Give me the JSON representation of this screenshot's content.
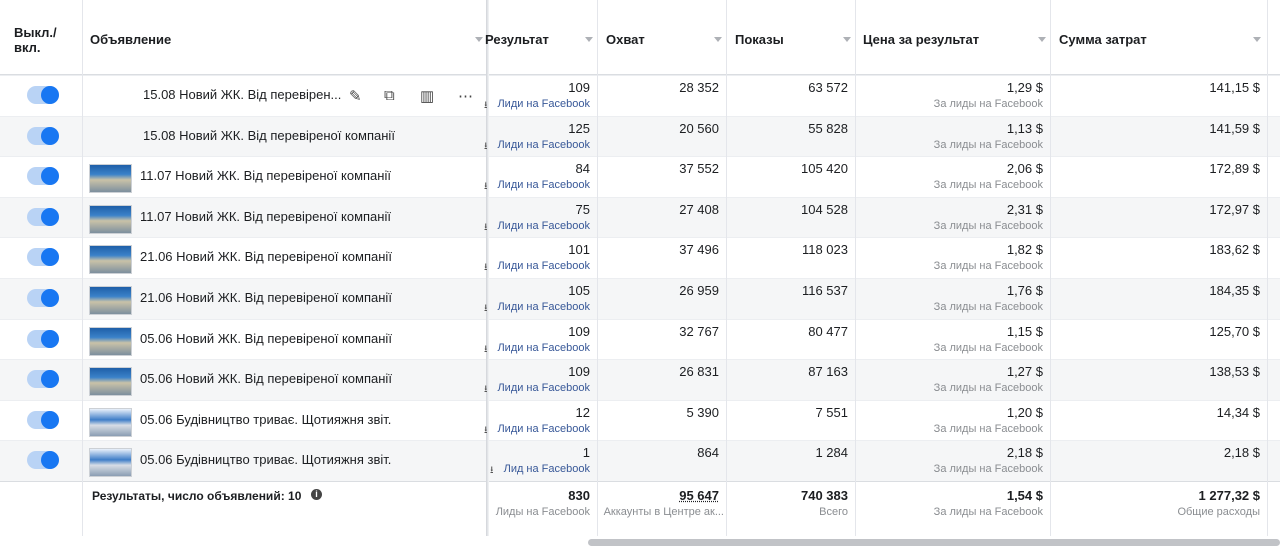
{
  "header": {
    "toggle": [
      "Выкл./",
      "вкл."
    ],
    "columns": [
      "Объявление",
      "Результат",
      "Охват",
      "Показы",
      "Цена за результат",
      "Сумма затрат"
    ]
  },
  "table": {
    "rows": [
      {
        "name": "15.08 Новий ЖК. Від перевірен...",
        "result": "109",
        "result_label": "Лиди на Facebook",
        "reach": "28 352",
        "impressions": "63 572",
        "cost": "1,29 $",
        "cost_label": "За лиды на Facebook",
        "spend": "141,15 $"
      },
      {
        "name": "15.08 Новий ЖК. Від перевіреної компанії",
        "result": "125",
        "result_label": "Лиди на Facebook",
        "reach": "20 560",
        "impressions": "55 828",
        "cost": "1,13 $",
        "cost_label": "За лиды на Facebook",
        "spend": "141,59 $"
      },
      {
        "name": "11.07 Новий ЖК. Від перевіреної компанії",
        "result": "84",
        "result_label": "Лиди на Facebook",
        "reach": "37 552",
        "impressions": "105 420",
        "cost": "2,06 $",
        "cost_label": "За лиды на Facebook",
        "spend": "172,89 $"
      },
      {
        "name": "11.07 Новий ЖК. Від перевіреної компанії",
        "result": "75",
        "result_label": "Лиди на Facebook",
        "reach": "27 408",
        "impressions": "104 528",
        "cost": "2,31 $",
        "cost_label": "За лиды на Facebook",
        "spend": "172,97 $"
      },
      {
        "name": "21.06 Новий ЖК. Від перевіреної компанії",
        "result": "101",
        "result_label": "Лиди на Facebook",
        "reach": "37 496",
        "impressions": "118 023",
        "cost": "1,82 $",
        "cost_label": "За лиды на Facebook",
        "spend": "183,62 $"
      },
      {
        "name": "21.06 Новий ЖК. Від перевіреної компанії",
        "result": "105",
        "result_label": "Лиди на Facebook",
        "reach": "26 959",
        "impressions": "116 537",
        "cost": "1,76 $",
        "cost_label": "За лиды на Facebook",
        "spend": "184,35 $"
      },
      {
        "name": "05.06 Новий ЖК. Від перевіреної компанії",
        "result": "109",
        "result_label": "Лиди на Facebook",
        "reach": "32 767",
        "impressions": "80 477",
        "cost": "1,15 $",
        "cost_label": "За лиды на Facebook",
        "spend": "125,70 $"
      },
      {
        "name": "05.06 Новий ЖК. Від перевіреної компанії",
        "result": "109",
        "result_label": "Лиди на Facebook",
        "reach": "26 831",
        "impressions": "87 163",
        "cost": "1,27 $",
        "cost_label": "За лиды на Facebook",
        "spend": "138,53 $"
      },
      {
        "name": "05.06 Будівництво триває. Щотияжня звіт.",
        "result": "12",
        "result_label": "Лиди на Facebook",
        "reach": "5 390",
        "impressions": "7 551",
        "cost": "1,20 $",
        "cost_label": "За лиды на Facebook",
        "spend": "14,34 $"
      },
      {
        "name": "05.06 Будівництво триває. Щотияжня звіт.",
        "result": "1",
        "result_label": "Лид на Facebook",
        "reach": "864",
        "impressions": "1 284",
        "cost": "2,18 $",
        "cost_label": "За лиды на Facebook",
        "spend": "2,18 $"
      }
    ]
  },
  "footer": {
    "summary": "Результаты, число объявлений: 10",
    "result": "830",
    "result_label": "Лиды на Facebook",
    "reach": "95 647",
    "reach_label": "Аккаунты в Центре ак...",
    "impressions": "740 383",
    "impressions_label": "Всего",
    "cost": "1,54 $",
    "cost_label": "За лиды на Facebook",
    "spend": "1 277,32 $",
    "spend_label": "Общие расходы"
  }
}
